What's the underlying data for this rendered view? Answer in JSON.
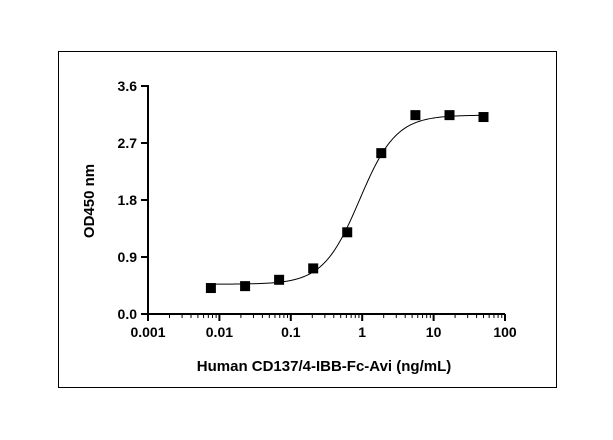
{
  "chart_data": {
    "type": "scatter",
    "title": "",
    "xlabel": "Human CD137/4-IBB-Fc-Avi (ng/mL)",
    "ylabel": "OD450 nm",
    "xscale": "log",
    "xlim": [
      0.001,
      100
    ],
    "ylim": [
      0.0,
      3.6
    ],
    "xticks": [
      0.001,
      0.01,
      0.1,
      1,
      10,
      100
    ],
    "xtick_labels": [
      "0.001",
      "0.01",
      "0.1",
      "1",
      "10",
      "100"
    ],
    "yticks": [
      0.0,
      0.9,
      1.8,
      2.7,
      3.6
    ],
    "ytick_labels": [
      "0.0",
      "0.9",
      "1.8",
      "2.7",
      "3.6"
    ],
    "grid": false,
    "marker": "square",
    "color": "#000000",
    "series": [
      {
        "x": [
          0.0076,
          0.0229,
          0.0686,
          0.206,
          0.617,
          1.85,
          5.56,
          16.7,
          50
        ],
        "y": [
          0.41,
          0.44,
          0.54,
          0.72,
          1.29,
          2.54,
          3.14,
          3.14,
          3.11
        ]
      }
    ],
    "fit": {
      "type": "4PL",
      "bottom": 0.47,
      "top": 3.14,
      "ec50": 0.92,
      "hill": 1.7
    }
  }
}
